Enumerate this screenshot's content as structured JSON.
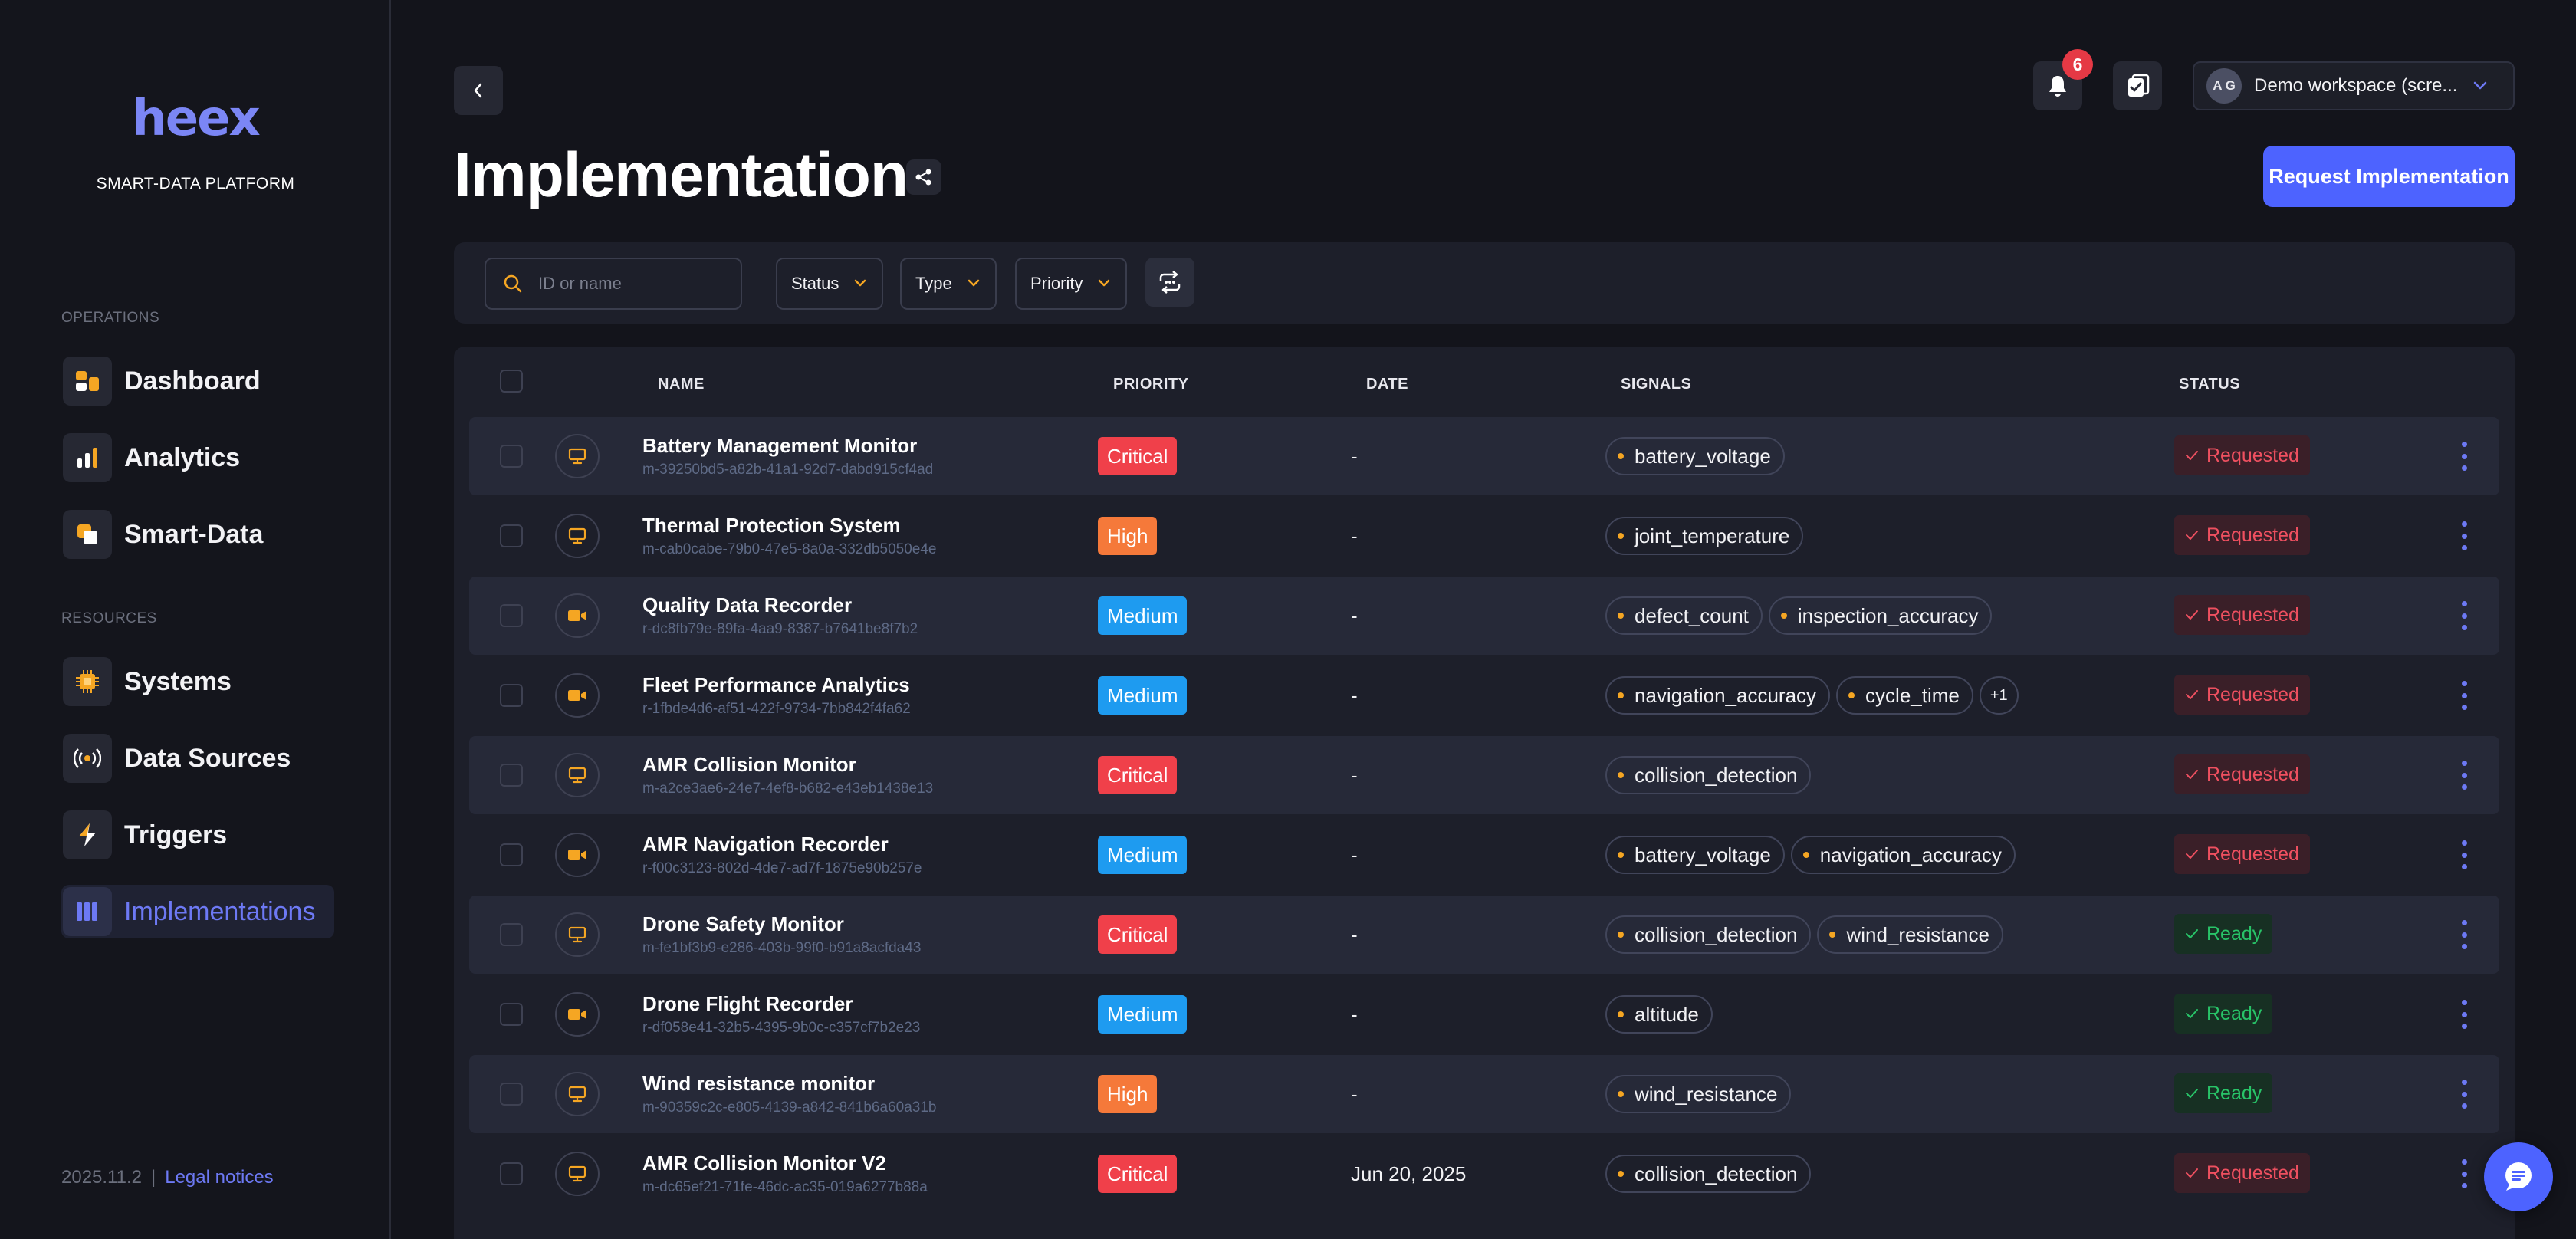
{
  "brand": {
    "logo": "heex",
    "tagline": "SMART-DATA PLATFORM"
  },
  "sidebar": {
    "operations_label": "OPERATIONS",
    "resources_label": "RESOURCES",
    "items": [
      {
        "label": "Dashboard",
        "icon": "dashboard-icon"
      },
      {
        "label": "Analytics",
        "icon": "analytics-icon"
      },
      {
        "label": "Smart-Data",
        "icon": "smart-data-icon"
      },
      {
        "label": "Systems",
        "icon": "chip-icon"
      },
      {
        "label": "Data Sources",
        "icon": "broadcast-icon"
      },
      {
        "label": "Triggers",
        "icon": "lightning-icon"
      },
      {
        "label": "Implementations",
        "icon": "columns-icon",
        "active": true
      }
    ],
    "version": "2025.11.2",
    "separator": "|",
    "legal": "Legal notices"
  },
  "header": {
    "title": "Implementation",
    "notification_count": "6",
    "workspace": {
      "initials": "A G",
      "name": "Demo workspace (scre..."
    },
    "request_button": "Request Implementation"
  },
  "filters": {
    "search_placeholder": "ID or name",
    "status": "Status",
    "type": "Type",
    "priority": "Priority"
  },
  "table": {
    "columns": {
      "name": "NAME",
      "priority": "PRIORITY",
      "date": "DATE",
      "signals": "SIGNALS",
      "status": "STATUS"
    },
    "rows": [
      {
        "type": "monitor",
        "name": "Battery Management Monitor",
        "id": "m-39250bd5-a82b-41a1-92d7-dabd915cf4ad",
        "priority": "Critical",
        "date": "-",
        "signals": [
          "battery_voltage"
        ],
        "more": "",
        "status": "Requested"
      },
      {
        "type": "monitor",
        "name": "Thermal Protection System",
        "id": "m-cab0cabe-79b0-47e5-8a0a-332db5050e4e",
        "priority": "High",
        "date": "-",
        "signals": [
          "joint_temperature"
        ],
        "more": "",
        "status": "Requested"
      },
      {
        "type": "recorder",
        "name": "Quality Data Recorder",
        "id": "r-dc8fb79e-89fa-4aa9-8387-b7641be8f7b2",
        "priority": "Medium",
        "date": "-",
        "signals": [
          "defect_count",
          "inspection_accuracy"
        ],
        "more": "",
        "status": "Requested"
      },
      {
        "type": "recorder",
        "name": "Fleet Performance Analytics",
        "id": "r-1fbde4d6-af51-422f-9734-7bb842f4fa62",
        "priority": "Medium",
        "date": "-",
        "signals": [
          "navigation_accuracy",
          "cycle_time"
        ],
        "more": "+1",
        "status": "Requested"
      },
      {
        "type": "monitor",
        "name": "AMR Collision Monitor",
        "id": "m-a2ce3ae6-24e7-4ef8-b682-e43eb1438e13",
        "priority": "Critical",
        "date": "-",
        "signals": [
          "collision_detection"
        ],
        "more": "",
        "status": "Requested"
      },
      {
        "type": "recorder",
        "name": "AMR Navigation Recorder",
        "id": "r-f00c3123-802d-4de7-ad7f-1875e90b257e",
        "priority": "Medium",
        "date": "-",
        "signals": [
          "battery_voltage",
          "navigation_accuracy"
        ],
        "more": "",
        "status": "Requested"
      },
      {
        "type": "monitor",
        "name": "Drone Safety Monitor",
        "id": "m-fe1bf3b9-e286-403b-99f0-b91a8acfda43",
        "priority": "Critical",
        "date": "-",
        "signals": [
          "collision_detection",
          "wind_resistance"
        ],
        "more": "",
        "status": "Ready"
      },
      {
        "type": "recorder",
        "name": "Drone Flight Recorder",
        "id": "r-df058e41-32b5-4395-9b0c-c357cf7b2e23",
        "priority": "Medium",
        "date": "-",
        "signals": [
          "altitude"
        ],
        "more": "",
        "status": "Ready"
      },
      {
        "type": "monitor",
        "name": "Wind resistance monitor",
        "id": "m-90359c2c-e805-4139-a842-841b6a60a31b",
        "priority": "High",
        "date": "-",
        "signals": [
          "wind_resistance"
        ],
        "more": "",
        "status": "Ready"
      },
      {
        "type": "monitor",
        "name": "AMR Collision Monitor V2",
        "id": "m-dc65ef21-71fe-46dc-ac35-019a6277b88a",
        "priority": "Critical",
        "date": "Jun 20, 2025",
        "signals": [
          "collision_detection"
        ],
        "more": "",
        "status": "Requested"
      }
    ]
  },
  "colors": {
    "accent": "#4d63ff",
    "critical": "#f0404a",
    "high": "#f5793a",
    "medium": "#1e9bf0",
    "requested": "#ef5060",
    "ready": "#28c468",
    "icon_orange": "#f5a623"
  }
}
